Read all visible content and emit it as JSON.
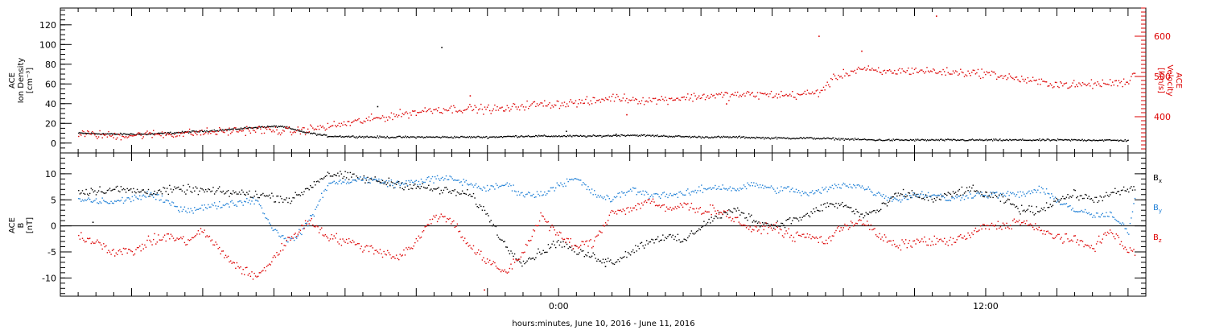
{
  "chart_data": [
    {
      "type": "scatter",
      "panel": "top",
      "left_axis": {
        "label_lines": [
          "ACE",
          "Ion Density",
          "[cm⁻³]"
        ],
        "range": [
          -10,
          137
        ],
        "ticks": [
          0,
          20,
          40,
          60,
          80,
          100,
          120
        ],
        "color": "#000000"
      },
      "right_axis": {
        "label_lines": [
          "ACE",
          "Velocity",
          "[km/s]"
        ],
        "range": [
          310,
          670
        ],
        "ticks": [
          400,
          500,
          600
        ],
        "color": "#dd0000"
      },
      "series": [
        {
          "axis": "left",
          "color": "#000000",
          "points": [
            [
              -13.5,
              10
            ],
            [
              -12.5,
              9
            ],
            [
              -11.5,
              9
            ],
            [
              -10.5,
              11
            ],
            [
              -9.5,
              13
            ],
            [
              -8.5,
              16
            ],
            [
              -7.8,
              17
            ],
            [
              -7.3,
              12
            ],
            [
              -6.5,
              7
            ],
            [
              -5,
              6
            ],
            [
              -4,
              6
            ],
            [
              -3,
              6
            ],
            [
              -2,
              6
            ],
            [
              -1,
              7
            ],
            [
              0,
              7
            ],
            [
              1,
              7
            ],
            [
              2,
              8
            ],
            [
              3,
              7
            ],
            [
              4,
              6
            ],
            [
              5,
              6
            ],
            [
              6,
              5
            ],
            [
              7,
              5
            ],
            [
              8,
              4
            ],
            [
              9,
              3
            ],
            [
              10,
              3
            ],
            [
              11,
              3
            ],
            [
              12,
              3
            ],
            [
              13,
              3
            ],
            [
              14,
              3
            ],
            [
              15,
              3
            ],
            [
              16,
              2.5
            ]
          ],
          "outliers": [
            [
              -3.3,
              97
            ],
            [
              -5.1,
              37
            ],
            [
              1.6,
              9
            ],
            [
              0.2,
              12
            ]
          ]
        },
        {
          "axis": "right",
          "color": "#dd0000",
          "points": [
            [
              -13.5,
              358
            ],
            [
              -12.5,
              352
            ],
            [
              -11.5,
              356
            ],
            [
              -10.5,
              358
            ],
            [
              -9.5,
              363
            ],
            [
              -8.5,
              368
            ],
            [
              -7.5,
              363
            ],
            [
              -6.5,
              375
            ],
            [
              -5.5,
              390
            ],
            [
              -4.5,
              405
            ],
            [
              -3.5,
              418
            ],
            [
              -2.5,
              420
            ],
            [
              -1.5,
              418
            ],
            [
              -1,
              428
            ],
            [
              0,
              432
            ],
            [
              1,
              438
            ],
            [
              1.5,
              448
            ],
            [
              2.5,
              440
            ],
            [
              3.5,
              447
            ],
            [
              4.5,
              453
            ],
            [
              5.5,
              455
            ],
            [
              6.5,
              453
            ],
            [
              7.3,
              460
            ],
            [
              7.8,
              500
            ],
            [
              8.5,
              520
            ],
            [
              9,
              510
            ],
            [
              10,
              515
            ],
            [
              11,
              510
            ],
            [
              12,
              508
            ],
            [
              12.7,
              497
            ],
            [
              13.5,
              485
            ],
            [
              14.5,
              478
            ],
            [
              15.5,
              483
            ],
            [
              16,
              487
            ],
            [
              16.1,
              505
            ],
            [
              16.2,
              510
            ]
          ],
          "outliers": [
            [
              10.6,
              650
            ],
            [
              7.3,
              600
            ],
            [
              -2.5,
              452
            ],
            [
              1.9,
              405
            ],
            [
              8.5,
              563
            ],
            [
              4.7,
              432
            ]
          ]
        }
      ]
    },
    {
      "type": "scatter",
      "panel": "bottom",
      "left_axis": {
        "label_lines": [
          "ACE",
          "B",
          "[nT]"
        ],
        "range": [
          -13.5,
          14
        ],
        "ticks": [
          -10,
          -5,
          0,
          5,
          10
        ],
        "color": "#000000"
      },
      "zero_line": true,
      "series": [
        {
          "name": "Bx",
          "name_base": "B",
          "name_sub": "x",
          "color": "#000000",
          "points": [
            [
              -13.5,
              6.5
            ],
            [
              -12.5,
              7
            ],
            [
              -11.5,
              6.5
            ],
            [
              -10.5,
              7
            ],
            [
              -9.5,
              6.5
            ],
            [
              -8.5,
              6
            ],
            [
              -7.5,
              5
            ],
            [
              -6.5,
              10
            ],
            [
              -5.5,
              9
            ],
            [
              -4.5,
              8
            ],
            [
              -3.5,
              7
            ],
            [
              -2.5,
              6
            ],
            [
              -2,
              2
            ],
            [
              -1.5,
              -4
            ],
            [
              -1,
              -7
            ],
            [
              -0.5,
              -5
            ],
            [
              0,
              -3
            ],
            [
              0.5,
              -5
            ],
            [
              1,
              -6
            ],
            [
              1.5,
              -7
            ],
            [
              2,
              -5
            ],
            [
              2.5,
              -3
            ],
            [
              3,
              -2
            ],
            [
              3.5,
              -3
            ],
            [
              4,
              0
            ],
            [
              4.5,
              2
            ],
            [
              5,
              3
            ],
            [
              5.5,
              1
            ],
            [
              6,
              0
            ],
            [
              6.5,
              1
            ],
            [
              7,
              2
            ],
            [
              7.5,
              4
            ],
            [
              8,
              4
            ],
            [
              8.5,
              2
            ],
            [
              9,
              3
            ],
            [
              9.5,
              6
            ],
            [
              10,
              6
            ],
            [
              10.5,
              5
            ],
            [
              11,
              6
            ],
            [
              11.5,
              7
            ],
            [
              12,
              6
            ],
            [
              12.5,
              5
            ],
            [
              13,
              3
            ],
            [
              13.5,
              3
            ],
            [
              14,
              5
            ],
            [
              14.5,
              6
            ],
            [
              15,
              5
            ],
            [
              15.5,
              6
            ],
            [
              16,
              7
            ],
            [
              16.2,
              7
            ]
          ],
          "outliers": [
            [
              -13.1,
              0.7
            ],
            [
              1.3,
              -7.8
            ]
          ]
        },
        {
          "name": "By",
          "name_base": "B",
          "name_sub": "y",
          "color": "#1e7fd6",
          "points": [
            [
              -13.5,
              5
            ],
            [
              -12.5,
              4.5
            ],
            [
              -11.5,
              6
            ],
            [
              -10.5,
              3
            ],
            [
              -9.5,
              4
            ],
            [
              -8.5,
              5
            ],
            [
              -8,
              -1
            ],
            [
              -7.5,
              -3
            ],
            [
              -7,
              1
            ],
            [
              -6.5,
              8
            ],
            [
              -5.5,
              9
            ],
            [
              -4.5,
              8
            ],
            [
              -3.5,
              9
            ],
            [
              -3,
              9
            ],
            [
              -2.5,
              8
            ],
            [
              -2,
              7
            ],
            [
              -1.5,
              8
            ],
            [
              -1,
              6
            ],
            [
              -0.5,
              6
            ],
            [
              0,
              8
            ],
            [
              0.5,
              9
            ],
            [
              1,
              6
            ],
            [
              1.5,
              5
            ],
            [
              2,
              7
            ],
            [
              2.5,
              6
            ],
            [
              3,
              6
            ],
            [
              3.5,
              6
            ],
            [
              4,
              7
            ],
            [
              4.5,
              7.5
            ],
            [
              5,
              7
            ],
            [
              5.5,
              8
            ],
            [
              6,
              7
            ],
            [
              6.5,
              7
            ],
            [
              7,
              6
            ],
            [
              7.5,
              7
            ],
            [
              8,
              8
            ],
            [
              8.5,
              7.5
            ],
            [
              9,
              6
            ],
            [
              9.5,
              5
            ],
            [
              10,
              6
            ],
            [
              10.5,
              6
            ],
            [
              11,
              5
            ],
            [
              11.5,
              6
            ],
            [
              12,
              6
            ],
            [
              12.5,
              6
            ],
            [
              13,
              6
            ],
            [
              13.5,
              7
            ],
            [
              14,
              5
            ],
            [
              14.5,
              3
            ],
            [
              15,
              2
            ],
            [
              15.5,
              2
            ],
            [
              16,
              -1
            ],
            [
              16.2,
              6
            ]
          ],
          "outliers": []
        },
        {
          "name": "Bz",
          "name_base": "B",
          "name_sub": "z",
          "color": "#dd0000",
          "points": [
            [
              -13.5,
              -2
            ],
            [
              -13,
              -3
            ],
            [
              -12.5,
              -5
            ],
            [
              -12,
              -5
            ],
            [
              -11.5,
              -3
            ],
            [
              -11,
              -2
            ],
            [
              -10.5,
              -3
            ],
            [
              -10,
              -1
            ],
            [
              -9.5,
              -5
            ],
            [
              -9,
              -8
            ],
            [
              -8.5,
              -10
            ],
            [
              -8,
              -6
            ],
            [
              -7.5,
              -2
            ],
            [
              -7,
              1
            ],
            [
              -6.5,
              -2
            ],
            [
              -6,
              -3
            ],
            [
              -5.5,
              -4
            ],
            [
              -5,
              -5
            ],
            [
              -4.5,
              -6
            ],
            [
              -4,
              -3
            ],
            [
              -3.5,
              2
            ],
            [
              -3,
              1
            ],
            [
              -2.5,
              -4
            ],
            [
              -2,
              -7
            ],
            [
              -1.5,
              -9
            ],
            [
              -1,
              -5
            ],
            [
              -0.5,
              2
            ],
            [
              0,
              -2
            ],
            [
              0.5,
              -4
            ],
            [
              1,
              -3
            ],
            [
              1.5,
              3
            ],
            [
              2,
              3
            ],
            [
              2.5,
              5
            ],
            [
              3,
              3
            ],
            [
              3.5,
              4
            ],
            [
              4,
              3
            ],
            [
              4.5,
              3
            ],
            [
              5,
              1
            ],
            [
              5.5,
              -1
            ],
            [
              6,
              0
            ],
            [
              6.5,
              -2
            ],
            [
              7,
              -2
            ],
            [
              7.5,
              -3
            ],
            [
              8,
              0
            ],
            [
              8.5,
              1
            ],
            [
              9,
              -2
            ],
            [
              9.5,
              -4
            ],
            [
              10,
              -3
            ],
            [
              10.5,
              -3
            ],
            [
              11,
              -3
            ],
            [
              11.5,
              -2
            ],
            [
              12,
              0
            ],
            [
              12.5,
              0
            ],
            [
              13,
              1
            ],
            [
              13.5,
              -1
            ],
            [
              14,
              -2
            ],
            [
              14.5,
              -3
            ],
            [
              15,
              -4
            ],
            [
              15.5,
              -1
            ],
            [
              16,
              -5
            ],
            [
              16.2,
              -5
            ]
          ],
          "outliers": [
            [
              -2.1,
              -12.3
            ]
          ]
        }
      ]
    }
  ],
  "x_axis": {
    "range": [
      -14,
      16.5
    ],
    "tick_labels": [
      {
        "x": 0,
        "label": "0:00"
      },
      {
        "x": 12,
        "label": "12:00"
      }
    ],
    "label": "hours:minutes, June 10, 2016 - June 11, 2016"
  }
}
